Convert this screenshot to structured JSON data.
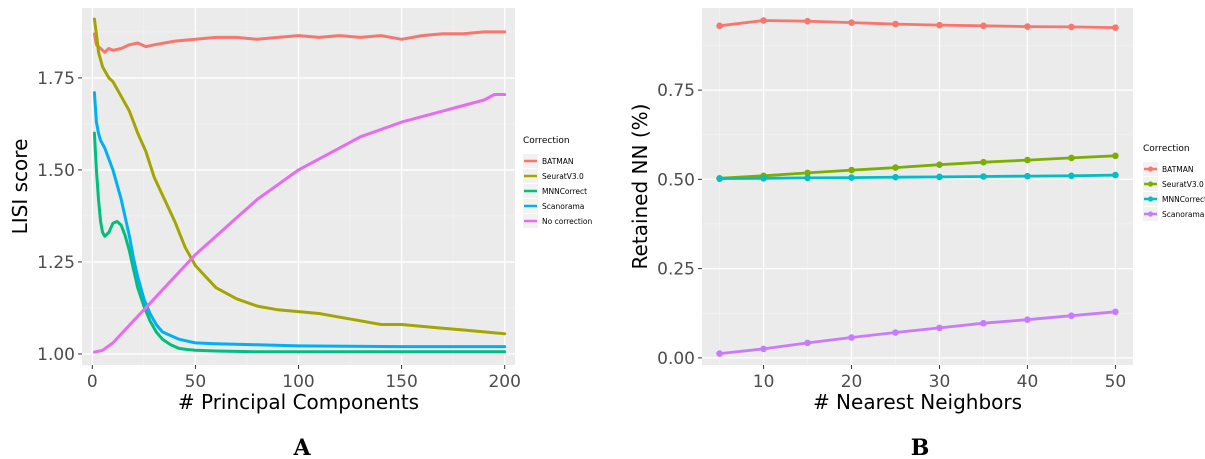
{
  "chart_data": [
    {
      "type": "line",
      "panel_label": "A",
      "xlabel": "# Principal Components",
      "ylabel": "LISI score",
      "xlim": [
        -5,
        205
      ],
      "ylim": [
        0.97,
        1.94
      ],
      "x_ticks": [
        0,
        50,
        100,
        150,
        200
      ],
      "y_ticks": [
        1.0,
        1.25,
        1.5,
        1.75
      ],
      "y_tick_labels": [
        "1.00",
        "1.25",
        "1.50",
        "1.75"
      ],
      "grid": true,
      "legend_placement": "right",
      "legend_title": "Correction",
      "series": [
        {
          "name": "BATMAN",
          "color": "#f8766d",
          "x": [
            1,
            2,
            4,
            6,
            8,
            10,
            14,
            18,
            22,
            26,
            30,
            40,
            50,
            60,
            70,
            80,
            90,
            100,
            110,
            120,
            130,
            140,
            150,
            160,
            170,
            180,
            190,
            200
          ],
          "y": [
            1.87,
            1.84,
            1.83,
            1.82,
            1.83,
            1.825,
            1.83,
            1.84,
            1.845,
            1.835,
            1.84,
            1.85,
            1.855,
            1.86,
            1.86,
            1.855,
            1.86,
            1.865,
            1.86,
            1.865,
            1.86,
            1.865,
            1.855,
            1.865,
            1.87,
            1.87,
            1.875,
            1.875
          ]
        },
        {
          "name": "SeuratV3.0",
          "color": "#a3a500",
          "x": [
            1,
            2,
            3,
            5,
            8,
            10,
            14,
            18,
            22,
            26,
            30,
            35,
            40,
            45,
            50,
            55,
            60,
            70,
            80,
            90,
            100,
            110,
            120,
            130,
            140,
            150,
            160,
            170,
            180,
            190,
            200
          ],
          "y": [
            1.91,
            1.87,
            1.82,
            1.78,
            1.75,
            1.74,
            1.7,
            1.66,
            1.6,
            1.55,
            1.48,
            1.42,
            1.36,
            1.29,
            1.24,
            1.21,
            1.18,
            1.15,
            1.13,
            1.12,
            1.115,
            1.11,
            1.1,
            1.09,
            1.08,
            1.08,
            1.075,
            1.07,
            1.065,
            1.06,
            1.055
          ]
        },
        {
          "name": "MNNCorrect",
          "color": "#00bf7d",
          "x": [
            1,
            2,
            3,
            4,
            5,
            6,
            8,
            10,
            12,
            14,
            16,
            18,
            20,
            22,
            25,
            28,
            31,
            34,
            38,
            42,
            46,
            50,
            60,
            80,
            100,
            150,
            200
          ],
          "y": [
            1.6,
            1.5,
            1.42,
            1.36,
            1.33,
            1.32,
            1.33,
            1.355,
            1.36,
            1.35,
            1.32,
            1.28,
            1.23,
            1.18,
            1.13,
            1.09,
            1.06,
            1.04,
            1.025,
            1.015,
            1.012,
            1.01,
            1.008,
            1.006,
            1.006,
            1.006,
            1.006
          ]
        },
        {
          "name": "Scanorama",
          "color": "#00b0f6",
          "x": [
            1,
            2,
            3,
            4,
            6,
            8,
            10,
            12,
            14,
            16,
            18,
            20,
            22,
            25,
            28,
            31,
            34,
            38,
            42,
            46,
            50,
            60,
            80,
            100,
            150,
            200
          ],
          "y": [
            1.71,
            1.63,
            1.6,
            1.58,
            1.56,
            1.53,
            1.5,
            1.46,
            1.42,
            1.37,
            1.32,
            1.26,
            1.21,
            1.15,
            1.11,
            1.08,
            1.06,
            1.05,
            1.04,
            1.035,
            1.03,
            1.028,
            1.025,
            1.022,
            1.02,
            1.02
          ]
        },
        {
          "name": "No correction",
          "color": "#e76bf3",
          "x": [
            1,
            5,
            10,
            15,
            20,
            25,
            30,
            35,
            40,
            50,
            60,
            70,
            80,
            90,
            100,
            110,
            120,
            130,
            140,
            150,
            160,
            170,
            180,
            190,
            195,
            200
          ],
          "y": [
            1.005,
            1.01,
            1.03,
            1.06,
            1.09,
            1.12,
            1.15,
            1.18,
            1.21,
            1.27,
            1.32,
            1.37,
            1.42,
            1.46,
            1.5,
            1.53,
            1.56,
            1.59,
            1.61,
            1.63,
            1.645,
            1.66,
            1.675,
            1.69,
            1.705,
            1.705
          ]
        }
      ]
    },
    {
      "type": "line",
      "panel_label": "B",
      "xlabel": "# Nearest Neighbors",
      "ylabel": "Retained NN (%)",
      "xlim": [
        3,
        52
      ],
      "ylim": [
        -0.02,
        0.98
      ],
      "x_ticks": [
        10,
        20,
        30,
        40,
        50
      ],
      "y_ticks": [
        0.0,
        0.25,
        0.5,
        0.75
      ],
      "y_tick_labels": [
        "0.00",
        "0.25",
        "0.50",
        "0.75"
      ],
      "grid": true,
      "legend_placement": "right",
      "legend_title": "Correction",
      "x": [
        5,
        10,
        15,
        20,
        25,
        30,
        35,
        40,
        45,
        50
      ],
      "series": [
        {
          "name": "BATMAN",
          "color": "#f8766d",
          "values": [
            0.93,
            0.945,
            0.943,
            0.939,
            0.935,
            0.932,
            0.93,
            0.928,
            0.927,
            0.925
          ]
        },
        {
          "name": "SeuratV3.0",
          "color": "#7cae00",
          "values": [
            0.503,
            0.51,
            0.518,
            0.526,
            0.533,
            0.541,
            0.548,
            0.554,
            0.56,
            0.566
          ]
        },
        {
          "name": "MNNCorrect",
          "color": "#00bfc4",
          "values": [
            0.502,
            0.503,
            0.504,
            0.505,
            0.506,
            0.507,
            0.508,
            0.509,
            0.51,
            0.512
          ]
        },
        {
          "name": "Scanorama",
          "color": "#c77cff",
          "values": [
            0.012,
            0.025,
            0.042,
            0.057,
            0.071,
            0.084,
            0.097,
            0.107,
            0.118,
            0.129
          ]
        }
      ]
    }
  ]
}
